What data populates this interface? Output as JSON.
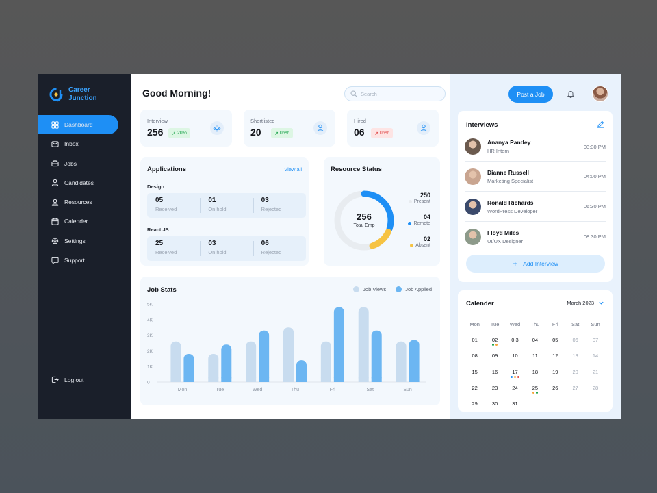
{
  "app": {
    "brand_line1": "Career",
    "brand_line2": "Junction"
  },
  "colors": {
    "accent": "#1e8ff5",
    "sidebar_bg": "#1a1f2a",
    "job_views": "#c8dcef",
    "job_applied": "#6cb6f2",
    "present": "#e8ecf0",
    "remote": "#1e8ff5",
    "absent": "#f6c343"
  },
  "sidebar": {
    "items": [
      {
        "label": "Dashboard",
        "icon": "dashboard-icon",
        "active": true
      },
      {
        "label": "Inbox",
        "icon": "inbox-icon"
      },
      {
        "label": "Jobs",
        "icon": "briefcase-icon"
      },
      {
        "label": "Candidates",
        "icon": "user-icon"
      },
      {
        "label": "Resources",
        "icon": "user-icon"
      },
      {
        "label": "Calender",
        "icon": "calendar-icon"
      },
      {
        "label": "Settings",
        "icon": "gear-icon"
      },
      {
        "label": "Support",
        "icon": "chat-icon"
      }
    ],
    "logout": "Log out"
  },
  "header": {
    "greeting": "Good Morning!",
    "search_placeholder": "Search"
  },
  "stats": [
    {
      "label": "Interview",
      "value": "256",
      "change": "20%",
      "trend": "up"
    },
    {
      "label": "Shortlisted",
      "value": "20",
      "change": "05%",
      "trend": "up"
    },
    {
      "label": "Hired",
      "value": "06",
      "change": "05%",
      "trend": "down"
    }
  ],
  "applications": {
    "title": "Applications",
    "view_all": "View all",
    "groups": [
      {
        "name": "Design",
        "cells": [
          {
            "num": "05",
            "label": "Received"
          },
          {
            "num": "01",
            "label": "On hold"
          },
          {
            "num": "03",
            "label": "Rejected"
          }
        ]
      },
      {
        "name": "React JS",
        "cells": [
          {
            "num": "25",
            "label": "Received"
          },
          {
            "num": "03",
            "label": "On hold"
          },
          {
            "num": "06",
            "label": "Rejected"
          }
        ]
      }
    ]
  },
  "resource": {
    "title": "Resource Status",
    "total": "256",
    "total_label": "Total Emp",
    "present": "250",
    "present_label": "Present",
    "remote": "04",
    "remote_label": "Remote",
    "absent": "02",
    "absent_label": "Absent"
  },
  "chart_data": {
    "type": "bar",
    "title": "Job Stats",
    "categories": [
      "Mon",
      "Tue",
      "Wed",
      "Thu",
      "Fri",
      "Sat",
      "Sun"
    ],
    "yticks": [
      "0",
      "1K",
      "2K",
      "3K",
      "4K",
      "5K"
    ],
    "ylim": [
      0,
      5000
    ],
    "series": [
      {
        "name": "Job Views",
        "values": [
          2600,
          1800,
          2600,
          3500,
          2600,
          4800,
          2600
        ]
      },
      {
        "name": "Job Applied",
        "values": [
          1800,
          2400,
          3300,
          1400,
          4800,
          3300,
          2700
        ]
      }
    ],
    "legend": "top-right"
  },
  "topbar": {
    "post_job": "Post a Job"
  },
  "interviews": {
    "title": "Interviews",
    "add_label": "Add Interview",
    "items": [
      {
        "name": "Ananya Pandey",
        "role": "HR Intern",
        "time": "03:30 PM",
        "avatar": "#6b5a4e"
      },
      {
        "name": "Dianne Russell",
        "role": "Marketing Specialist",
        "time": "04:00 PM",
        "avatar": "#c9a590"
      },
      {
        "name": "Ronald Richards",
        "role": "WordPress Developer",
        "time": "06:30 PM",
        "avatar": "#3b4a6b"
      },
      {
        "name": "Floyd Miles",
        "role": "UI/UX Designer",
        "time": "08:30 PM",
        "avatar": "#8d9a8a"
      }
    ]
  },
  "calendar": {
    "title": "Calender",
    "month": "March 2023",
    "dows": [
      "Mon",
      "Tue",
      "Wed",
      "Thu",
      "Fri",
      "Sat",
      "Sun"
    ],
    "weeks": [
      [
        {
          "d": "01"
        },
        {
          "d": "02",
          "dots": [
            "#1aa34a",
            "#f6a53a"
          ]
        },
        {
          "d": "0 3"
        },
        {
          "d": "04"
        },
        {
          "d": "05"
        },
        {
          "d": "06",
          "muted": true
        },
        {
          "d": "07",
          "muted": true
        }
      ],
      [
        {
          "d": "08"
        },
        {
          "d": "09"
        },
        {
          "d": "10"
        },
        {
          "d": "11"
        },
        {
          "d": "12"
        },
        {
          "d": "13",
          "muted": true
        },
        {
          "d": "14",
          "muted": true
        }
      ],
      [
        {
          "d": "15"
        },
        {
          "d": "16"
        },
        {
          "d": "17",
          "dots": [
            "#1e8ff5",
            "#f6a53a",
            "#e04a4a"
          ]
        },
        {
          "d": "18"
        },
        {
          "d": "19"
        },
        {
          "d": "20",
          "muted": true
        },
        {
          "d": "21",
          "muted": true
        }
      ],
      [
        {
          "d": "22"
        },
        {
          "d": "23"
        },
        {
          "d": "24"
        },
        {
          "d": "25",
          "dots": [
            "#f6a53a",
            "#1aa34a"
          ]
        },
        {
          "d": "26"
        },
        {
          "d": "27",
          "muted": true
        },
        {
          "d": "28",
          "muted": true
        }
      ],
      [
        {
          "d": "29"
        },
        {
          "d": "30"
        },
        {
          "d": "31"
        }
      ]
    ]
  }
}
